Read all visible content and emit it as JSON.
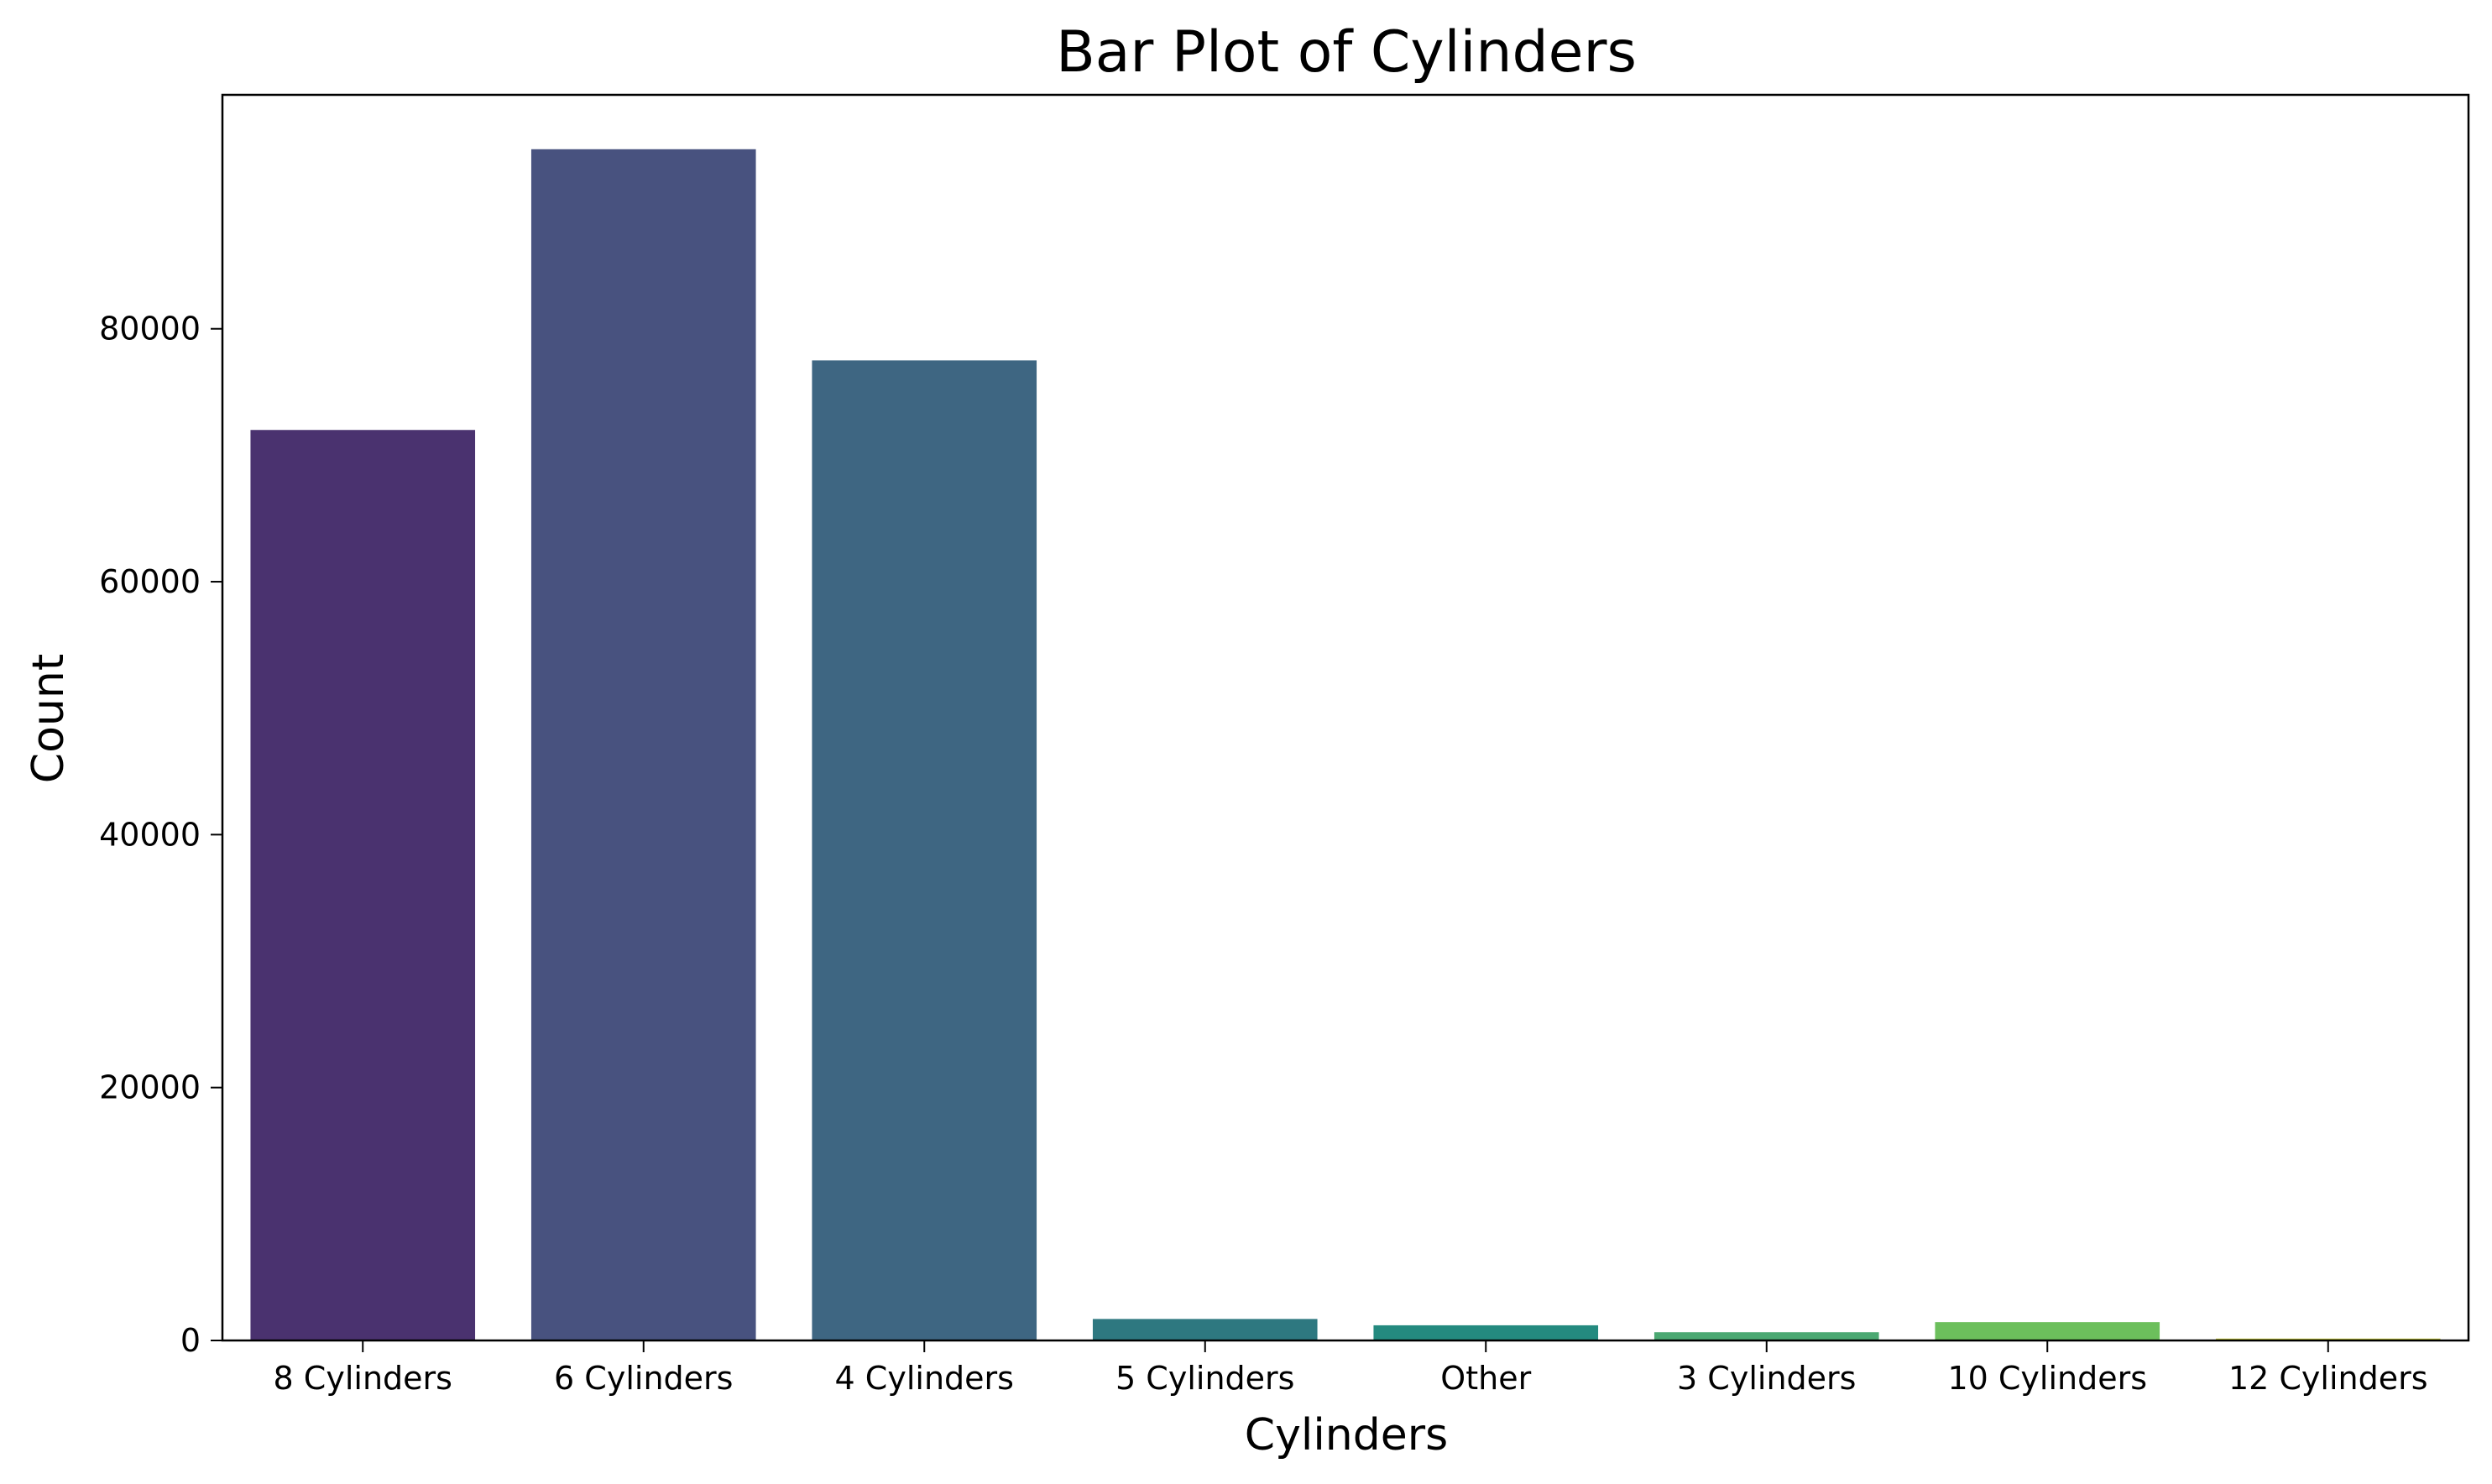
{
  "chart_data": {
    "type": "bar",
    "title": "Bar Plot of Cylinders",
    "xlabel": "Cylinders",
    "ylabel": "Count",
    "categories": [
      "8 Cylinders",
      "6 Cylinders",
      "4 Cylinders",
      "5 Cylinders",
      "Other",
      "3 Cylinders",
      "10 Cylinders",
      "12 Cylinders"
    ],
    "values": [
      72000,
      94200,
      77500,
      1700,
      1200,
      650,
      1450,
      150
    ],
    "colors": [
      "#4a326f",
      "#48527f",
      "#3e6682",
      "#2e7880",
      "#248a7f",
      "#4ba872",
      "#6cbf5c",
      "#c2c63d"
    ],
    "ylim": [
      0,
      98500
    ],
    "yticks": [
      0,
      20000,
      40000,
      60000,
      80000
    ],
    "ytick_labels": [
      "0",
      "20000",
      "40000",
      "60000",
      "80000"
    ],
    "grid": false,
    "legend": false
  }
}
